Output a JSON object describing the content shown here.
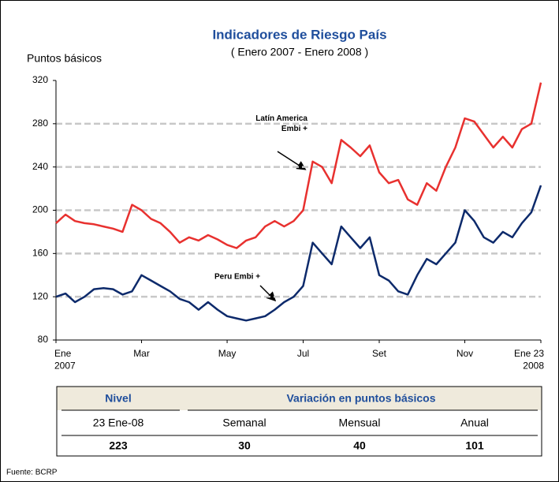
{
  "chart_data": {
    "type": "line",
    "title": "Indicadores de Riesgo País",
    "subtitle": "( Enero 2007 - Enero 2008 )",
    "y_label": "Puntos básicos",
    "categories": [
      "Ene\n2007",
      null,
      null,
      null,
      null,
      null,
      null,
      null,
      null,
      "Mar",
      null,
      null,
      null,
      null,
      null,
      null,
      null,
      null,
      "May",
      null,
      null,
      null,
      null,
      null,
      null,
      null,
      "Jul",
      null,
      null,
      null,
      null,
      null,
      null,
      null,
      "Set",
      null,
      null,
      null,
      null,
      null,
      null,
      null,
      null,
      "Nov",
      null,
      null,
      null,
      null,
      null,
      null,
      null,
      "Ene 23\n2008"
    ],
    "series": [
      {
        "name": "Latín America\nEmbi +",
        "color": "#e8312f",
        "values": [
          188,
          196,
          190,
          188,
          187,
          185,
          183,
          180,
          205,
          200,
          192,
          188,
          180,
          170,
          175,
          172,
          177,
          173,
          168,
          165,
          172,
          175,
          185,
          190,
          185,
          190,
          200,
          245,
          240,
          225,
          265,
          258,
          250,
          260,
          235,
          225,
          228,
          210,
          205,
          225,
          218,
          240,
          258,
          285,
          282,
          270,
          258,
          268,
          258,
          275,
          280,
          318
        ]
      },
      {
        "name": "Peru Embi +",
        "color": "#0d2a6b",
        "values": [
          120,
          123,
          115,
          120,
          127,
          128,
          127,
          122,
          125,
          140,
          135,
          130,
          125,
          118,
          115,
          108,
          115,
          108,
          102,
          100,
          98,
          100,
          102,
          108,
          115,
          120,
          130,
          170,
          160,
          150,
          185,
          175,
          165,
          175,
          140,
          135,
          125,
          122,
          140,
          155,
          150,
          160,
          170,
          200,
          190,
          175,
          170,
          180,
          175,
          188,
          198,
          223
        ]
      }
    ],
    "ylim": [
      80,
      320
    ],
    "yticks": [
      80,
      120,
      160,
      200,
      240,
      280,
      320
    ],
    "grid": true
  },
  "table": {
    "header": [
      "Nivel",
      "Variación en puntos básicos"
    ],
    "rows": [
      [
        "23 Ene-08",
        "Semanal",
        "Mensual",
        "Anual"
      ],
      [
        "223",
        "30",
        "40",
        "101"
      ]
    ]
  },
  "footer": "Fuente: BCRP"
}
